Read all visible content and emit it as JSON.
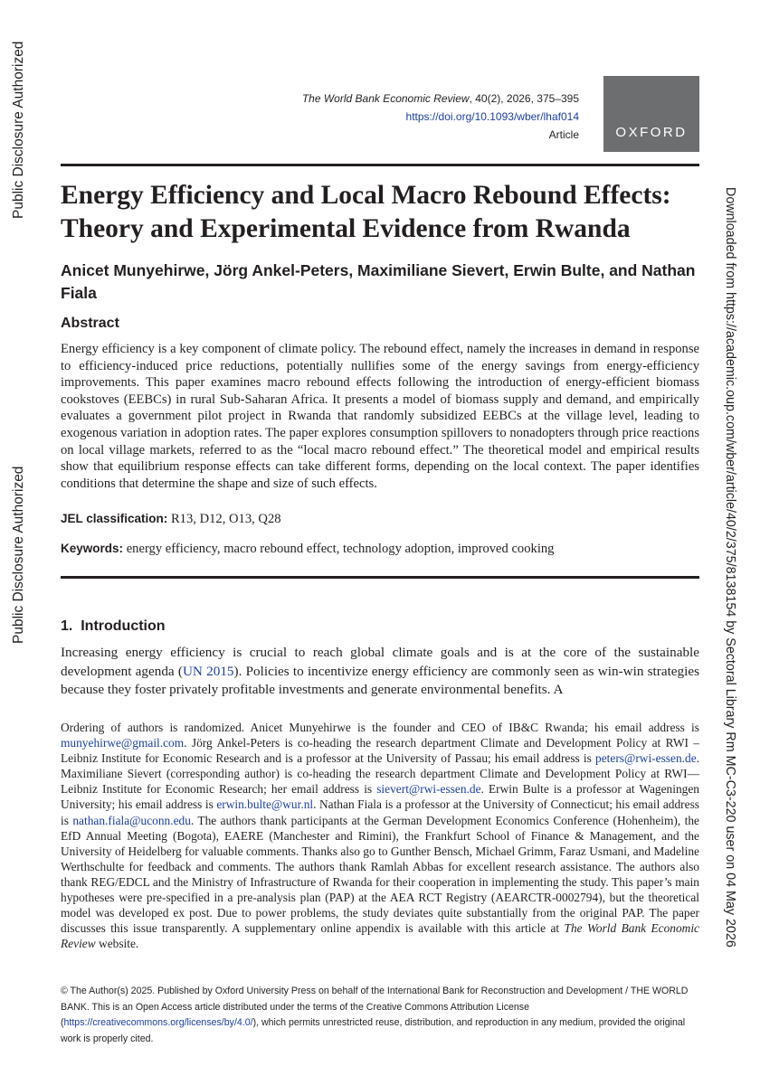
{
  "sidebar": {
    "left_top": "Public Disclosure Authorized",
    "left_bottom": "Public Disclosure Authorized",
    "right": "Downloaded from https://academic.oup.com/wber/article/40/2/375/8138154 by Sectoral Library Rm MC-C3-220 user on 04 May 2026"
  },
  "header": {
    "journal": "The World Bank Economic Review",
    "citation": ", 40(2), 2026, 375–395",
    "doi": "https://doi.org/10.1093/wber/lhaf014",
    "article_type": "Article",
    "publisher_logo": "OXFORD"
  },
  "title": "Energy Efficiency and Local Macro Rebound Effects: Theory and Experimental Evidence from Rwanda",
  "authors": "Anicet Munyehirwe, Jörg Ankel-Peters, Maximiliane Sievert, Erwin Bulte, and Nathan Fiala",
  "abstract": {
    "heading": "Abstract",
    "text": "Energy efficiency is a key component of climate policy. The rebound effect, namely the increases in demand in response to efficiency-induced price reductions, potentially nullifies some of the energy savings from energy-efficiency improvements. This paper examines macro rebound effects following the introduction of energy-efficient biomass cookstoves (EEBCs) in rural Sub-Saharan Africa. It presents a model of biomass supply and demand, and empirically evaluates a government pilot project in Rwanda that randomly subsidized EEBCs at the village level, leading to exogenous variation in adoption rates. The paper explores consumption spillovers to nonadopters through price reactions on local village markets, referred to as the “local macro rebound effect.” The theoretical model and empirical results show that equilibrium response effects can take different forms, depending on the local context. The paper identifies conditions that determine the shape and size of such effects."
  },
  "jel": {
    "label": "JEL classification:",
    "text": "R13, D12, O13, Q28"
  },
  "keywords": {
    "label": "Keywords:",
    "text": "energy efficiency, macro rebound effect, technology adoption, improved cooking"
  },
  "introduction": {
    "number": "1.",
    "heading": "Introduction",
    "paragraph": [
      "Increasing energy efficiency is crucial to reach global climate goals and is at the core of the sustainable development agenda (",
      "UN 2015",
      "). Policies to incentivize energy efficiency are commonly seen as win-win strategies because they foster privately profitable investments and generate environmental benefits. A"
    ]
  },
  "footnote": [
    "Ordering of authors is randomized. Anicet Munyehirwe is the founder and CEO of IB&C Rwanda; his email address is ",
    "munyehirwe@gmail.com",
    ". Jörg Ankel-Peters is co-heading the research department Climate and Development Policy at RWI – Leibniz Institute for Economic Research and is a professor at the University of Passau; his email address is ",
    "peters@rwi-essen.de",
    ". Maximiliane Sievert (corresponding author) is co-heading the research department Climate and Development Policy at RWI—Leibniz Institute for Economic Research; her email address is ",
    "sievert@rwi-essen.de",
    ". Erwin Bulte is a professor at Wageningen University; his email address is ",
    "erwin.bulte@wur.nl",
    ". Nathan Fiala is a professor at the University of Connecticut; his email address is ",
    "nathan.fiala@uconn.edu",
    ". The authors thank participants at the German Development Economics Conference (Hohenheim), the EfD Annual Meeting (Bogota), EAERE (Manchester and Rimini), the Frankfurt School of Finance & Management, and the University of Heidelberg for valuable comments. Thanks also go to Gunther Bensch, Michael Grimm, Faraz Usmani, and Madeline Werthschulte for feedback and comments. The authors thank Ramlah Abbas for excellent research assistance. The authors also thank REG/EDCL and the Ministry of Infrastructure of Rwanda for their cooperation in implementing the study. This paper’s main hypotheses were pre-specified in a pre-analysis plan (PAP) at the AEA RCT Registry (AEARCTR-0002794), but the theoretical model was developed ex post. Due to power problems, the study deviates quite substantially from the original PAP. The paper discusses this issue transparently. A supplementary online appendix is available with this article at ",
    "The World Bank Economic Review",
    " website."
  ],
  "license": [
    "© The Author(s) 2025. Published by Oxford University Press on behalf of the International Bank for Reconstruction and Development / THE WORLD BANK. This is an Open Access article distributed under the terms of the Creative Commons Attribution License (",
    "https://creativecommons.org/licenses/by/4.0/",
    "), which permits unrestricted reuse, distribution, and reproduction in any medium, provided the original work is properly cited."
  ]
}
